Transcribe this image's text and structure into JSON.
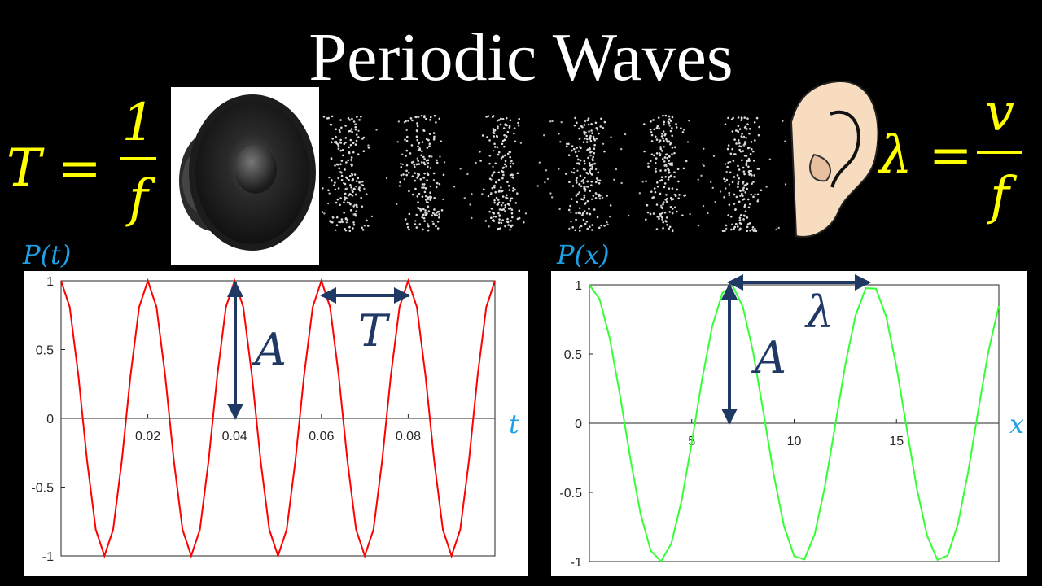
{
  "slide": {
    "title": "Periodic Waves",
    "formula_left": {
      "lhs": "T =",
      "numerator": "1",
      "denominator": "f"
    },
    "formula_right": {
      "lhs": "λ =",
      "numerator": "v",
      "denominator": "f"
    }
  },
  "chart_data": [
    {
      "type": "line",
      "ylabel": "P(t)",
      "xlabel": "t",
      "annotations": [
        "A",
        "T"
      ],
      "xlim": [
        0,
        0.1
      ],
      "ylim": [
        -1,
        1
      ],
      "xticks": [
        0.02,
        0.04,
        0.06,
        0.08
      ],
      "yticks": [
        -1,
        -0.5,
        0,
        0.5,
        1
      ],
      "x": [
        0,
        0.002,
        0.004,
        0.006,
        0.008,
        0.01,
        0.012,
        0.014,
        0.016,
        0.018,
        0.02,
        0.022,
        0.024,
        0.026,
        0.028,
        0.03,
        0.032,
        0.034,
        0.036,
        0.038,
        0.04,
        0.042,
        0.044,
        0.046,
        0.048,
        0.05,
        0.052,
        0.054,
        0.056,
        0.058,
        0.06,
        0.062,
        0.064,
        0.066,
        0.068,
        0.07,
        0.072,
        0.074,
        0.076,
        0.078,
        0.08,
        0.082,
        0.084,
        0.086,
        0.088,
        0.09,
        0.092,
        0.094,
        0.096,
        0.098,
        0.1
      ],
      "series": [
        {
          "color": "#ff0000",
          "values": [
            1,
            0.809,
            0.309,
            -0.309,
            -0.809,
            -1,
            -0.809,
            -0.309,
            0.309,
            0.809,
            1,
            0.809,
            0.309,
            -0.309,
            -0.809,
            -1,
            -0.809,
            -0.309,
            0.309,
            0.809,
            1,
            0.809,
            0.309,
            -0.309,
            -0.809,
            -1,
            -0.809,
            -0.309,
            0.309,
            0.809,
            1,
            0.809,
            0.309,
            -0.309,
            -0.809,
            -1,
            -0.809,
            -0.309,
            0.309,
            0.809,
            1,
            0.809,
            0.309,
            -0.309,
            -0.809,
            -1,
            -0.809,
            -0.309,
            0.309,
            0.809,
            1
          ]
        }
      ]
    },
    {
      "type": "line",
      "ylabel": "P(x)",
      "xlabel": "x",
      "annotations": [
        "A",
        "λ"
      ],
      "xlim": [
        0,
        20
      ],
      "ylim": [
        -1,
        1
      ],
      "xticks": [
        5,
        10,
        15
      ],
      "yticks": [
        -1,
        -0.5,
        0,
        0.5,
        1
      ],
      "x": [
        0,
        0.5,
        1,
        1.5,
        2,
        2.5,
        3,
        3.5,
        4,
        4.5,
        5,
        5.5,
        6,
        6.5,
        7,
        7.5,
        8,
        8.5,
        9,
        9.5,
        10,
        10.5,
        11,
        11.5,
        12,
        12.5,
        13,
        13.5,
        14,
        14.5,
        15,
        15.5,
        16,
        16.5,
        17,
        17.5,
        18,
        18.5,
        19,
        19.5,
        20
      ],
      "series": [
        {
          "color": "#33ff33",
          "values": [
            1,
            0.897,
            0.61,
            0.198,
            -0.255,
            -0.656,
            -0.922,
            -0.998,
            -0.87,
            -0.562,
            -0.139,
            0.312,
            0.7,
            0.943,
            0.993,
            0.839,
            0.512,
            0.08,
            -0.368,
            -0.741,
            -0.961,
            -0.984,
            -0.805,
            -0.46,
            -0.021,
            0.423,
            0.779,
            0.976,
            0.972,
            0.768,
            0.407,
            -0.038,
            -0.476,
            -0.815,
            -0.987,
            -0.956,
            -0.729,
            -0.352,
            0.098,
            0.527,
            0.848
          ]
        }
      ]
    }
  ]
}
